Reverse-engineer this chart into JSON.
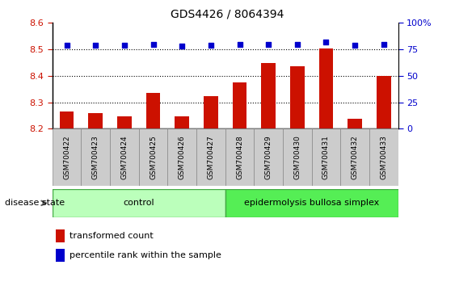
{
  "title": "GDS4426 / 8064394",
  "samples": [
    "GSM700422",
    "GSM700423",
    "GSM700424",
    "GSM700425",
    "GSM700426",
    "GSM700427",
    "GSM700428",
    "GSM700429",
    "GSM700430",
    "GSM700431",
    "GSM700432",
    "GSM700433"
  ],
  "transformed_counts": [
    8.265,
    8.258,
    8.247,
    8.335,
    8.247,
    8.322,
    8.374,
    8.449,
    8.435,
    8.502,
    8.237,
    8.4
  ],
  "percentile_ranks": [
    79,
    79,
    79,
    80,
    78,
    79,
    80,
    80,
    80,
    82,
    79,
    80
  ],
  "ylim_left": [
    8.2,
    8.6
  ],
  "ylim_right": [
    0,
    100
  ],
  "yticks_left": [
    8.2,
    8.3,
    8.4,
    8.5,
    8.6
  ],
  "yticks_right": [
    0,
    25,
    50,
    75,
    100
  ],
  "bar_color": "#cc1100",
  "dot_color": "#0000cc",
  "bar_bottom": 8.2,
  "control_samples": 6,
  "control_label": "control",
  "disease_label": "epidermolysis bullosa simplex",
  "disease_state_label": "disease state",
  "control_color": "#bbffbb",
  "disease_color": "#55ee55",
  "legend_items": [
    "transformed count",
    "percentile rank within the sample"
  ],
  "background_color": "#ffffff",
  "tick_label_color_left": "#cc1100",
  "tick_label_color_right": "#0000cc",
  "xlabel_bg_color": "#cccccc",
  "xlabel_border_color": "#888888"
}
